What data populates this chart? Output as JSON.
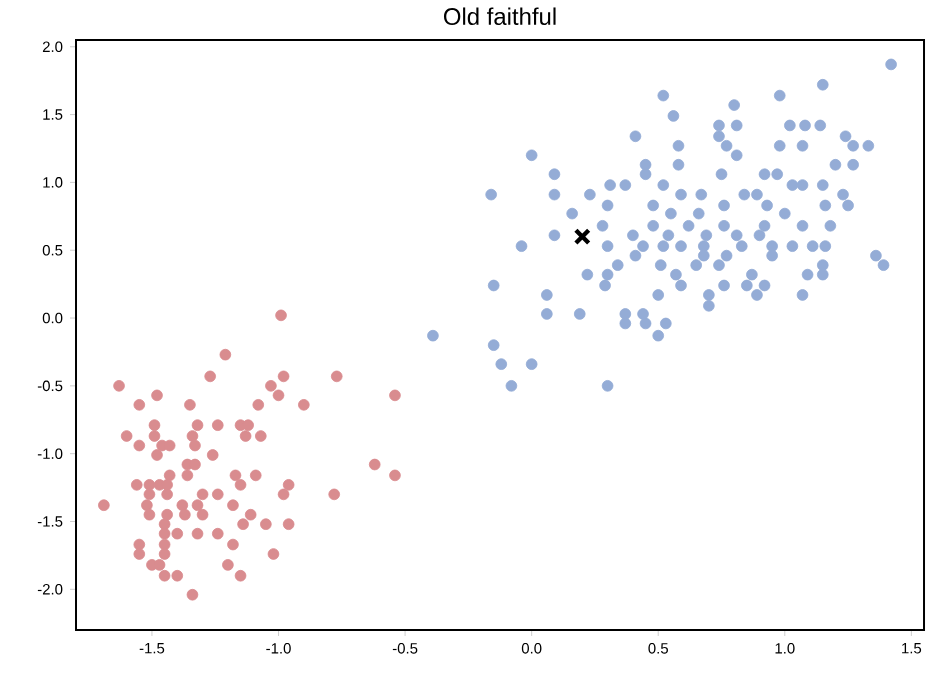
{
  "chart_data": {
    "type": "scatter",
    "title": "Old faithful",
    "marker": "circle",
    "xlim": [
      -1.8,
      1.55
    ],
    "ylim": [
      -2.3,
      2.05
    ],
    "xticks": [
      -1.5,
      {
        "value": -1,
        "label": "-1.0"
      },
      -0.5,
      {
        "value": 0,
        "label": "0.0"
      },
      0.5,
      {
        "value": 1,
        "label": "1.0"
      },
      1.5
    ],
    "yticks": [
      {
        "value": -2,
        "label": "-2.0"
      },
      -1.5,
      {
        "value": -1,
        "label": "-1.0"
      },
      -0.5,
      {
        "value": 0,
        "label": "0.0"
      },
      0.5,
      {
        "value": 1,
        "label": "1.0"
      },
      1.5,
      {
        "value": 2,
        "label": "2.0"
      }
    ],
    "series": [
      {
        "color": "#d98c8f",
        "x": [
          -0.99,
          -1.21,
          -1.27,
          -0.98,
          -0.77,
          -1.63,
          -1.03,
          -1.48,
          -1.0,
          -0.54,
          -1.55,
          -1.35,
          -1.08,
          -0.9,
          -1.49,
          -1.32,
          -1.24,
          -1.15,
          -1.12,
          -1.6,
          -1.49,
          -1.34,
          -1.13,
          -1.07,
          -1.55,
          -1.46,
          -1.43,
          -1.33,
          -1.48,
          -1.26,
          -1.36,
          -1.33,
          -0.62,
          -1.43,
          -1.36,
          -1.17,
          -1.09,
          -0.54,
          -1.56,
          -1.51,
          -1.47,
          -1.44,
          -1.15,
          -0.96,
          -1.51,
          -1.44,
          -1.3,
          -1.24,
          -0.98,
          -0.78,
          -1.69,
          -1.52,
          -1.38,
          -1.32,
          -1.18,
          -1.51,
          -1.44,
          -1.37,
          -1.3,
          -1.11,
          -1.45,
          -1.14,
          -1.05,
          -0.96,
          -1.45,
          -1.4,
          -1.32,
          -1.24,
          -1.55,
          -1.45,
          -1.18,
          -1.55,
          -1.45,
          -1.02,
          -1.5,
          -1.47,
          -1.2,
          -1.45,
          -1.4,
          -1.15,
          -1.34
        ],
        "values": [
          0.02,
          -0.27,
          -0.43,
          -0.43,
          -0.43,
          -0.5,
          -0.5,
          -0.57,
          -0.57,
          -0.57,
          -0.64,
          -0.64,
          -0.64,
          -0.64,
          -0.79,
          -0.79,
          -0.79,
          -0.79,
          -0.79,
          -0.87,
          -0.87,
          -0.87,
          -0.87,
          -0.87,
          -0.94,
          -0.94,
          -0.94,
          -0.94,
          -1.01,
          -1.01,
          -1.08,
          -1.08,
          -1.08,
          -1.16,
          -1.16,
          -1.16,
          -1.16,
          -1.16,
          -1.23,
          -1.23,
          -1.23,
          -1.23,
          -1.23,
          -1.23,
          -1.3,
          -1.3,
          -1.3,
          -1.3,
          -1.3,
          -1.3,
          -1.38,
          -1.38,
          -1.38,
          -1.38,
          -1.38,
          -1.45,
          -1.45,
          -1.45,
          -1.45,
          -1.45,
          -1.52,
          -1.52,
          -1.52,
          -1.52,
          -1.59,
          -1.59,
          -1.59,
          -1.59,
          -1.67,
          -1.67,
          -1.67,
          -1.74,
          -1.74,
          -1.74,
          -1.82,
          -1.82,
          -1.82,
          -1.9,
          -1.9,
          -1.9,
          -2.04
        ]
      },
      {
        "color": "#94acd6",
        "x": [
          1.42,
          0.52,
          0.98,
          1.15,
          0.8,
          0.56,
          0.74,
          0.81,
          1.02,
          1.08,
          1.14,
          0.41,
          0.74,
          1.24,
          0.0,
          0.58,
          0.77,
          0.98,
          1.07,
          1.27,
          1.33,
          0.81,
          0.58,
          0.45,
          1.2,
          1.27,
          0.09,
          0.45,
          0.75,
          0.92,
          0.97,
          -0.16,
          0.09,
          0.23,
          0.31,
          0.37,
          0.52,
          0.59,
          0.67,
          0.84,
          0.89,
          1.03,
          1.07,
          1.15,
          1.23,
          0.16,
          0.3,
          0.48,
          0.55,
          0.66,
          0.76,
          0.93,
          1.0,
          1.16,
          1.25,
          0.28,
          0.48,
          0.62,
          0.76,
          0.92,
          1.07,
          1.18,
          0.09,
          0.4,
          0.54,
          0.69,
          0.81,
          0.9,
          -0.04,
          0.3,
          0.44,
          0.52,
          0.59,
          0.68,
          0.83,
          0.95,
          1.03,
          1.11,
          1.16,
          0.41,
          0.68,
          0.77,
          0.95,
          1.36,
          0.34,
          0.51,
          0.65,
          0.74,
          1.15,
          1.39,
          0.22,
          0.3,
          0.57,
          0.87,
          1.09,
          1.15,
          -0.15,
          0.29,
          0.59,
          0.76,
          0.85,
          0.92,
          0.06,
          0.5,
          0.7,
          0.89,
          1.07,
          0.7,
          0.06,
          0.19,
          0.37,
          0.44,
          0.37,
          0.45,
          0.53,
          0.5,
          -0.39,
          -0.15,
          -0.12,
          0.0,
          -0.08,
          0.3
        ],
        "values": [
          1.87,
          1.64,
          1.64,
          1.72,
          1.57,
          1.49,
          1.42,
          1.42,
          1.42,
          1.42,
          1.42,
          1.34,
          1.34,
          1.34,
          1.2,
          1.27,
          1.27,
          1.27,
          1.27,
          1.27,
          1.27,
          1.2,
          1.13,
          1.13,
          1.13,
          1.13,
          1.06,
          1.06,
          1.06,
          1.06,
          1.06,
          0.91,
          0.91,
          0.91,
          0.98,
          0.98,
          0.98,
          0.91,
          0.91,
          0.91,
          0.91,
          0.98,
          0.98,
          0.98,
          0.91,
          0.77,
          0.83,
          0.83,
          0.77,
          0.77,
          0.83,
          0.83,
          0.77,
          0.83,
          0.83,
          0.68,
          0.68,
          0.68,
          0.68,
          0.68,
          0.68,
          0.68,
          0.61,
          0.61,
          0.61,
          0.61,
          0.61,
          0.61,
          0.53,
          0.53,
          0.53,
          0.53,
          0.53,
          0.53,
          0.53,
          0.53,
          0.53,
          0.53,
          0.53,
          0.46,
          0.46,
          0.46,
          0.46,
          0.46,
          0.39,
          0.39,
          0.39,
          0.39,
          0.39,
          0.39,
          0.32,
          0.32,
          0.32,
          0.32,
          0.32,
          0.32,
          0.24,
          0.24,
          0.24,
          0.24,
          0.24,
          0.24,
          0.17,
          0.17,
          0.17,
          0.17,
          0.17,
          0.09,
          0.03,
          0.03,
          0.03,
          0.03,
          -0.04,
          -0.04,
          -0.04,
          -0.13,
          -0.13,
          -0.2,
          -0.34,
          -0.34,
          -0.5,
          -0.5
        ]
      },
      {
        "color": "#000000",
        "marker": "cross",
        "x": [
          0.2
        ],
        "values": [
          0.6
        ]
      }
    ]
  }
}
